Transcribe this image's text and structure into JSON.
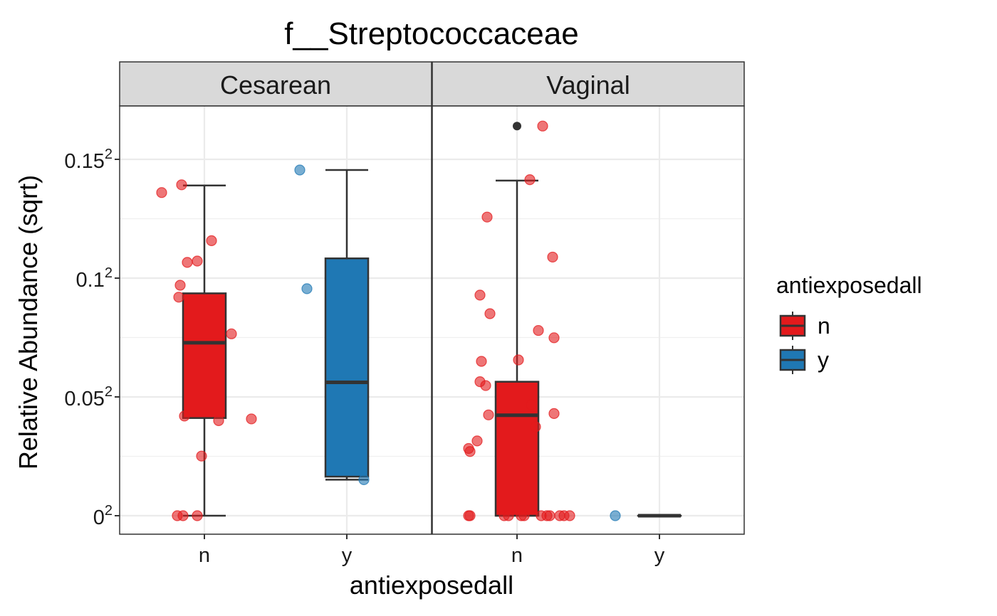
{
  "chart_data": {
    "type": "box",
    "title": "f__Streptococcaceae",
    "xlabel": "antiexposedall",
    "ylabel": "Relative Abundance (sqrt)",
    "y_scale": "sqrt",
    "ylim": [
      0,
      0.0282
    ],
    "y_ticks": [
      {
        "value": 0,
        "base": "0"
      },
      {
        "value": 0.0025,
        "base": "0.05"
      },
      {
        "value": 0.01,
        "base": "0.1"
      },
      {
        "value": 0.0225,
        "base": "0.15"
      }
    ],
    "x_categories": [
      "n",
      "y"
    ],
    "legend": {
      "title": "antiexposedall",
      "placement": "right",
      "entries": [
        {
          "label": "n",
          "color": "#E31A1C"
        },
        {
          "label": "y",
          "color": "#1F78B4"
        }
      ]
    },
    "colors": {
      "n": "#E31A1C",
      "y": "#1F78B4",
      "outlier": "#333333"
    },
    "panels": [
      {
        "name": "Cesarean",
        "boxes": [
          {
            "group": "n",
            "lower_whisker": 0,
            "q1": 0.00169,
            "median": 0.0053,
            "q3": 0.00876,
            "upper_whisker": 0.01932,
            "outliers": []
          },
          {
            "group": "y",
            "lower_whisker": 0.00023,
            "q1": 0.00027,
            "median": 0.00315,
            "q3": 0.01173,
            "upper_whisker": 0.02117,
            "outliers": []
          }
        ],
        "points": [
          {
            "group": "n",
            "x": 0.7,
            "y": 0.0185
          },
          {
            "group": "n",
            "x": 0.84,
            "y": 0.0194
          },
          {
            "group": "n",
            "x": 1.05,
            "y": 0.0134
          },
          {
            "group": "n",
            "x": 0.95,
            "y": 0.01149
          },
          {
            "group": "n",
            "x": 0.88,
            "y": 0.01137
          },
          {
            "group": "n",
            "x": 0.83,
            "y": 0.00941
          },
          {
            "group": "n",
            "x": 0.82,
            "y": 0.00846
          },
          {
            "group": "n",
            "x": 1.19,
            "y": 0.00586
          },
          {
            "group": "n",
            "x": 1.33,
            "y": 0.00166
          },
          {
            "group": "n",
            "x": 0.86,
            "y": 0.00176
          },
          {
            "group": "n",
            "x": 1.1,
            "y": 0.0016
          },
          {
            "group": "n",
            "x": 0.98,
            "y": 0.00063
          },
          {
            "group": "n",
            "x": 0.81,
            "y": 0
          },
          {
            "group": "n",
            "x": 0.85,
            "y": 0
          },
          {
            "group": "n",
            "x": 0.95,
            "y": 0
          },
          {
            "group": "y",
            "x": 1.67,
            "y": 0.02117
          },
          {
            "group": "y",
            "x": 1.72,
            "y": 0.00913
          },
          {
            "group": "y",
            "x": 2.12,
            "y": 0.00023
          }
        ]
      },
      {
        "name": "Vaginal",
        "boxes": [
          {
            "group": "n",
            "lower_whisker": 0,
            "q1": 0,
            "median": 0.00179,
            "q3": 0.00318,
            "upper_whisker": 0.0199,
            "outliers": [
              0.0269
            ]
          },
          {
            "group": "y",
            "lower_whisker": 0,
            "q1": 0,
            "median": 0,
            "q3": 0,
            "upper_whisker": 0,
            "outliers": []
          }
        ],
        "points": [
          {
            "group": "n",
            "x": 1.18,
            "y": 0.0269
          },
          {
            "group": "n",
            "x": 1.09,
            "y": 0.02
          },
          {
            "group": "n",
            "x": 0.79,
            "y": 0.0158
          },
          {
            "group": "n",
            "x": 1.25,
            "y": 0.01185
          },
          {
            "group": "n",
            "x": 0.74,
            "y": 0.00862
          },
          {
            "group": "n",
            "x": 0.81,
            "y": 0.00723
          },
          {
            "group": "n",
            "x": 1.15,
            "y": 0.00608
          },
          {
            "group": "n",
            "x": 1.26,
            "y": 0.00561
          },
          {
            "group": "n",
            "x": 0.75,
            "y": 0.00422
          },
          {
            "group": "n",
            "x": 1.01,
            "y": 0.0043
          },
          {
            "group": "n",
            "x": 0.74,
            "y": 0.00318
          },
          {
            "group": "n",
            "x": 0.78,
            "y": 0.003
          },
          {
            "group": "n",
            "x": 1.1,
            "y": 0.00218
          },
          {
            "group": "n",
            "x": 1.26,
            "y": 0.00185
          },
          {
            "group": "n",
            "x": 0.8,
            "y": 0.0018
          },
          {
            "group": "n",
            "x": 1.13,
            "y": 0.0014
          },
          {
            "group": "n",
            "x": 0.72,
            "y": 0.00099
          },
          {
            "group": "n",
            "x": 0.66,
            "y": 0.0008
          },
          {
            "group": "n",
            "x": 0.67,
            "y": 0.00073
          },
          {
            "group": "n",
            "x": 0.66,
            "y": 0
          },
          {
            "group": "n",
            "x": 0.67,
            "y": 0
          },
          {
            "group": "n",
            "x": 0.91,
            "y": 0
          },
          {
            "group": "n",
            "x": 0.94,
            "y": 0
          },
          {
            "group": "n",
            "x": 1.03,
            "y": 0
          },
          {
            "group": "n",
            "x": 1.05,
            "y": 0
          },
          {
            "group": "n",
            "x": 1.17,
            "y": 0
          },
          {
            "group": "n",
            "x": 1.21,
            "y": 0
          },
          {
            "group": "n",
            "x": 1.23,
            "y": 0
          },
          {
            "group": "n",
            "x": 1.3,
            "y": 0
          },
          {
            "group": "n",
            "x": 1.33,
            "y": 0
          },
          {
            "group": "n",
            "x": 1.37,
            "y": 0
          },
          {
            "group": "y",
            "x": 1.69,
            "y": 0
          }
        ]
      }
    ]
  }
}
